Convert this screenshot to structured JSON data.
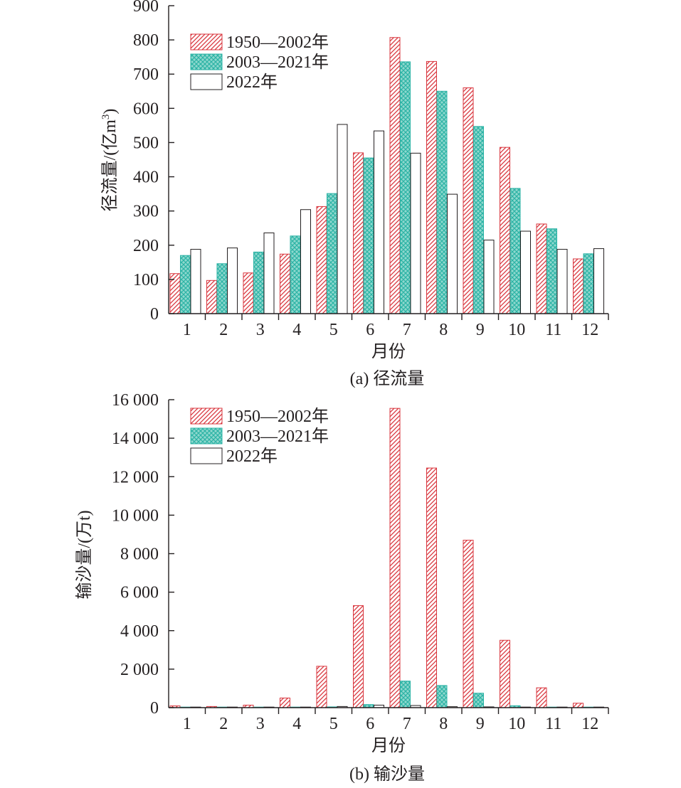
{
  "colors": {
    "series_1950_2002": "#d9363e",
    "series_2003_2021": "#2bb3a5",
    "series_2022": "#231f20",
    "axis": "#231f20"
  },
  "chart_data": [
    {
      "type": "bar",
      "caption": "(a) 径流量",
      "xlabel": "月份",
      "ylabel": "径流量/(亿m³)",
      "ylabel_main": "径流量/(亿m",
      "ylabel_sup": "3",
      "ylabel_close": ")",
      "ylim": [
        0,
        900
      ],
      "yticks": [
        0,
        100,
        200,
        300,
        400,
        500,
        600,
        700,
        800,
        900
      ],
      "ytick_labels": [
        "0",
        "100",
        "200",
        "300",
        "400",
        "500",
        "600",
        "700",
        "800",
        "900"
      ],
      "categories": [
        "1",
        "2",
        "3",
        "4",
        "5",
        "6",
        "7",
        "8",
        "9",
        "10",
        "11",
        "12"
      ],
      "legend_position": "top-left",
      "grid": false,
      "series": [
        {
          "name": "1950—2002年",
          "pattern": "diagonal-hatch",
          "values": [
            117,
            97,
            119,
            174,
            313,
            470,
            807,
            737,
            660,
            486,
            262,
            160
          ]
        },
        {
          "name": "2003—2021年",
          "pattern": "crosshatch",
          "values": [
            170,
            146,
            180,
            227,
            351,
            455,
            736,
            650,
            547,
            366,
            248,
            175
          ]
        },
        {
          "name": "2022年",
          "pattern": "none",
          "values": [
            188,
            192,
            236,
            304,
            553,
            534,
            469,
            349,
            215,
            241,
            188,
            190
          ]
        }
      ]
    },
    {
      "type": "bar",
      "caption": "(b) 输沙量",
      "xlabel": "月份",
      "ylabel": "输沙量/(万t)",
      "ylim": [
        0,
        16000
      ],
      "yticks": [
        0,
        2000,
        4000,
        6000,
        8000,
        10000,
        12000,
        14000,
        16000
      ],
      "ytick_labels": [
        "0",
        "2 000",
        "4 000",
        "6 000",
        "8 000",
        "10 000",
        "12 000",
        "14 000",
        "16 000"
      ],
      "categories": [
        "1",
        "2",
        "3",
        "4",
        "5",
        "6",
        "7",
        "8",
        "9",
        "10",
        "11",
        "12"
      ],
      "legend_position": "top-left",
      "grid": false,
      "series": [
        {
          "name": "1950—2002年",
          "pattern": "diagonal-hatch",
          "values": [
            90,
            60,
            130,
            500,
            2150,
            5300,
            15550,
            12450,
            8700,
            3500,
            1030,
            230
          ]
        },
        {
          "name": "2003—2021年",
          "pattern": "crosshatch",
          "values": [
            10,
            10,
            20,
            20,
            40,
            160,
            1380,
            1150,
            750,
            100,
            20,
            10
          ]
        },
        {
          "name": "2022年",
          "pattern": "none",
          "values": [
            10,
            10,
            10,
            20,
            60,
            130,
            110,
            50,
            40,
            20,
            10,
            10
          ]
        }
      ]
    }
  ]
}
